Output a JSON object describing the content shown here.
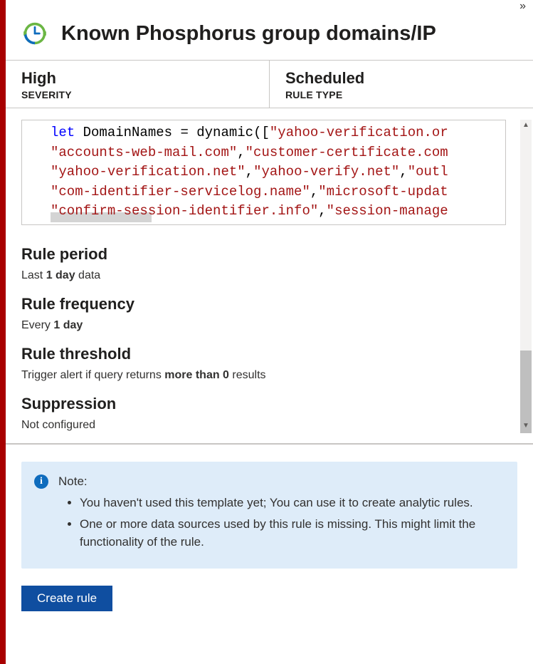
{
  "colors": {
    "left_bar": "#a80000",
    "border": "#c8c6c4",
    "text": "#323130",
    "code_keyword": "#0000ff",
    "code_string": "#a31515",
    "note_bg": "#deecf9",
    "info_icon_bg": "#0f6cbd",
    "button_bg": "#0f4ea0",
    "button_text": "#ffffff",
    "scroll_thumb": "#bfbfbf",
    "highlight_bg": "#d4d4d4"
  },
  "header": {
    "title": "Known Phosphorus group domains/IP",
    "chevron_glyph": "»"
  },
  "meta": {
    "severity": {
      "value": "High",
      "label": "SEVERITY"
    },
    "rule_type": {
      "value": "Scheduled",
      "label": "RULE TYPE"
    }
  },
  "code": {
    "lines": [
      [
        {
          "t": "let",
          "c": "let "
        },
        {
          "t": "id",
          "c": "DomainNames "
        },
        {
          "t": "op",
          "c": "= "
        },
        {
          "t": "fn",
          "c": "dynamic"
        },
        {
          "t": "br",
          "c": "(["
        },
        {
          "t": "str",
          "c": "\"yahoo-verification.or"
        }
      ],
      [
        {
          "t": "str",
          "c": "\"accounts-web-mail.com\""
        },
        {
          "t": "pn",
          "c": ","
        },
        {
          "t": "str",
          "c": "\"customer-certificate.com"
        }
      ],
      [
        {
          "t": "str",
          "c": "\"yahoo-verification.net\""
        },
        {
          "t": "pn",
          "c": ","
        },
        {
          "t": "str",
          "c": "\"yahoo-verify.net\""
        },
        {
          "t": "pn",
          "c": ","
        },
        {
          "t": "str",
          "c": "\"outl"
        }
      ],
      [
        {
          "t": "str",
          "c": "\"com-identifier-servicelog.name\""
        },
        {
          "t": "pn",
          "c": ","
        },
        {
          "t": "str",
          "c": "\"microsoft-updat"
        }
      ],
      [
        {
          "t": "str",
          "c": "\"confirm-session-identifier.info\""
        },
        {
          "t": "pn",
          "c": ","
        },
        {
          "t": "str",
          "c": "\"session-manage"
        }
      ]
    ]
  },
  "sections": {
    "period": {
      "title": "Rule period",
      "text_pre": "Last ",
      "text_bold": "1 day",
      "text_post": " data"
    },
    "frequency": {
      "title": "Rule frequency",
      "text_pre": "Every ",
      "text_bold": "1 day",
      "text_post": ""
    },
    "threshold": {
      "title": "Rule threshold",
      "text_pre": "Trigger alert if query returns ",
      "text_bold": "more than 0",
      "text_post": " results"
    },
    "suppression": {
      "title": "Suppression",
      "text_pre": "Not configured",
      "text_bold": "",
      "text_post": ""
    }
  },
  "note": {
    "label": "Note:",
    "items": [
      "You haven't used this template yet; You can use it to create analytic rules.",
      "One or more data sources used by this rule is missing. This might limit the functionality of the rule."
    ]
  },
  "button": {
    "create_label": "Create rule"
  }
}
